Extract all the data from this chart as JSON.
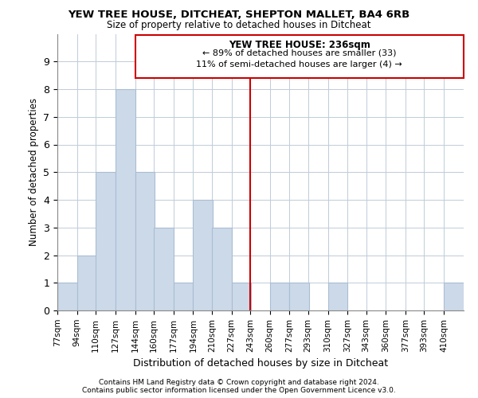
{
  "title1": "YEW TREE HOUSE, DITCHEAT, SHEPTON MALLET, BA4 6RB",
  "title2": "Size of property relative to detached houses in Ditcheat",
  "xlabel": "Distribution of detached houses by size in Ditcheat",
  "ylabel": "Number of detached properties",
  "footnote1": "Contains HM Land Registry data © Crown copyright and database right 2024.",
  "footnote2": "Contains public sector information licensed under the Open Government Licence v3.0.",
  "bins": [
    77,
    94,
    110,
    127,
    144,
    160,
    177,
    194,
    210,
    227,
    243,
    260,
    277,
    293,
    310,
    327,
    343,
    360,
    377,
    393,
    410
  ],
  "bin_labels": [
    "77sqm",
    "94sqm",
    "110sqm",
    "127sqm",
    "144sqm",
    "160sqm",
    "177sqm",
    "194sqm",
    "210sqm",
    "227sqm",
    "243sqm",
    "260sqm",
    "277sqm",
    "293sqm",
    "310sqm",
    "327sqm",
    "343sqm",
    "360sqm",
    "377sqm",
    "393sqm",
    "410sqm"
  ],
  "heights": [
    1,
    2,
    5,
    8,
    5,
    3,
    1,
    4,
    3,
    1,
    0,
    1,
    1,
    0,
    1,
    0,
    0,
    0,
    0,
    0,
    1
  ],
  "bar_color": "#ccd9e8",
  "bar_edge_color": "#aabdd4",
  "marker_value_idx": 10,
  "marker_line_color": "#cc0000",
  "annotation_title": "YEW TREE HOUSE: 236sqm",
  "annotation_line1": "← 89% of detached houses are smaller (33)",
  "annotation_line2": "11% of semi-detached houses are larger (4) →",
  "annotation_box_color": "#cc0000",
  "ylim": [
    0,
    10
  ],
  "yticks": [
    0,
    1,
    2,
    3,
    4,
    5,
    6,
    7,
    8,
    9,
    10
  ],
  "background_color": "#ffffff",
  "grid_color": "#c0ccd8"
}
